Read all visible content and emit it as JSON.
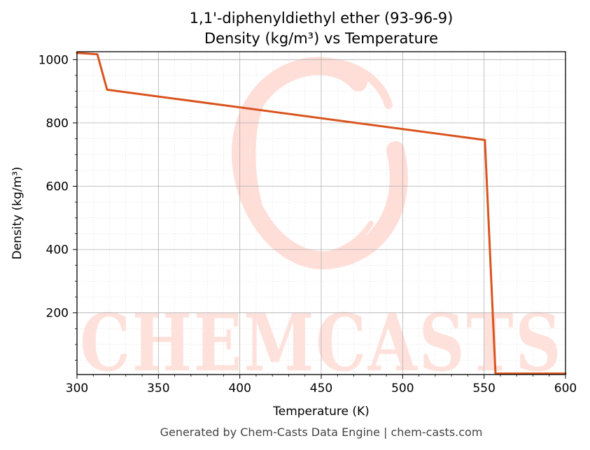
{
  "chart_data": {
    "type": "line",
    "title": "1,1'-diphenyldiethyl ether (93-96-9)",
    "subtitle": "Density (kg/m³) vs Temperature",
    "xlabel": "Temperature (K)",
    "ylabel": "Density (kg/m³)",
    "xlim": [
      300,
      600
    ],
    "ylim": [
      5,
      1025
    ],
    "xticks": [
      300,
      350,
      400,
      450,
      500,
      550,
      600
    ],
    "yticks": [
      200,
      400,
      600,
      800,
      1000
    ],
    "grid": true,
    "minor_grid": true,
    "series": [
      {
        "color": "#d9541e",
        "x": [
          300,
          312.5,
          318.5,
          550.5,
          557,
          600
        ],
        "y": [
          1021,
          1017,
          905,
          746,
          8,
          8
        ]
      }
    ],
    "footer": "Generated by Chem-Casts Data Engine | chem-casts.com",
    "watermark": "CHEMCASTS",
    "watermark_color": "#ffd7cf"
  }
}
